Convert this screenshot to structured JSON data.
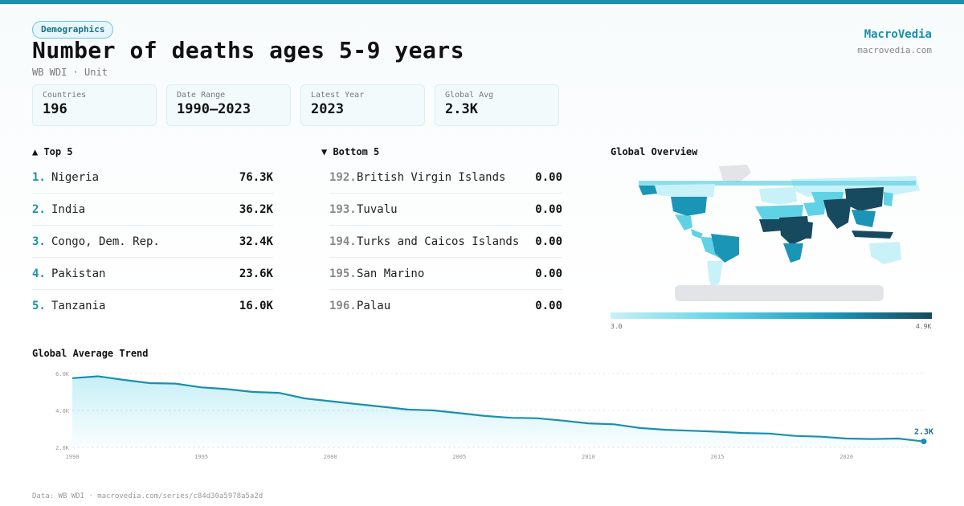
{
  "header": {
    "badge": "Demographics",
    "title": "Number of deaths ages 5-9 years",
    "subtitle": "WB WDI · Unit",
    "brand": "MacroVedia",
    "brand_url": "macrovedia.com"
  },
  "stats": [
    {
      "label": "Countries",
      "value": "196"
    },
    {
      "label": "Date Range",
      "value": "1990–2023"
    },
    {
      "label": "Latest Year",
      "value": "2023"
    },
    {
      "label": "Global Avg",
      "value": "2.3K"
    }
  ],
  "top5": {
    "title": "▲ Top 5",
    "items": [
      {
        "rank": "1.",
        "name": "Nigeria",
        "value": "76.3K"
      },
      {
        "rank": "2.",
        "name": "India",
        "value": "36.2K"
      },
      {
        "rank": "3.",
        "name": "Congo, Dem. Rep.",
        "value": "32.4K"
      },
      {
        "rank": "4.",
        "name": "Pakistan",
        "value": "23.6K"
      },
      {
        "rank": "5.",
        "name": "Tanzania",
        "value": "16.0K"
      }
    ]
  },
  "bottom5": {
    "title": "▼ Bottom 5",
    "items": [
      {
        "rank": "192.",
        "name": "British Virgin Islands",
        "value": "0.00"
      },
      {
        "rank": "193.",
        "name": "Tuvalu",
        "value": "0.00"
      },
      {
        "rank": "194.",
        "name": "Turks and Caicos Islands",
        "value": "0.00"
      },
      {
        "rank": "195.",
        "name": "San Marino",
        "value": "0.00"
      },
      {
        "rank": "196.",
        "name": "Palau",
        "value": "0.00"
      }
    ]
  },
  "map": {
    "title": "Global Overview",
    "legend_min": "3.0",
    "legend_max": "4.9K",
    "colors": {
      "low": "#c9f1f8",
      "mid": "#5fd2e6",
      "high": "#1a95b5",
      "max": "#174a5e",
      "nodata": "#e2e4e8"
    }
  },
  "trend_title": "Global Average Trend",
  "chart_data": {
    "type": "area",
    "title": "Global Average Trend",
    "x": [
      1990,
      1991,
      1992,
      1993,
      1994,
      1995,
      1996,
      1997,
      1998,
      1999,
      2000,
      2001,
      2002,
      2003,
      2004,
      2005,
      2006,
      2007,
      2008,
      2009,
      2010,
      2011,
      2012,
      2013,
      2014,
      2015,
      2016,
      2017,
      2018,
      2019,
      2020,
      2021,
      2022,
      2023
    ],
    "values": [
      5.75,
      5.85,
      5.65,
      5.48,
      5.45,
      5.25,
      5.15,
      5.0,
      4.95,
      4.65,
      4.5,
      4.35,
      4.2,
      4.05,
      4.0,
      3.85,
      3.7,
      3.6,
      3.58,
      3.45,
      3.3,
      3.25,
      3.05,
      2.95,
      2.9,
      2.85,
      2.78,
      2.75,
      2.62,
      2.58,
      2.48,
      2.45,
      2.48,
      2.32
    ],
    "ylim": [
      2.0,
      6.0
    ],
    "yticks": [
      "2.0K",
      "4.0K",
      "6.0K"
    ],
    "ytick_values": [
      2.0,
      4.0,
      6.0
    ],
    "xticks": [
      "1990",
      "1995",
      "2000",
      "2005",
      "2010",
      "2015",
      "2020"
    ],
    "xtick_values": [
      1990,
      1995,
      2000,
      2005,
      2010,
      2015,
      2020
    ],
    "last_label": "2.3K",
    "line_color": "#1a8fae"
  },
  "footer": "Data: WB WDI · macrovedia.com/series/c84d30a5978a5a2d"
}
